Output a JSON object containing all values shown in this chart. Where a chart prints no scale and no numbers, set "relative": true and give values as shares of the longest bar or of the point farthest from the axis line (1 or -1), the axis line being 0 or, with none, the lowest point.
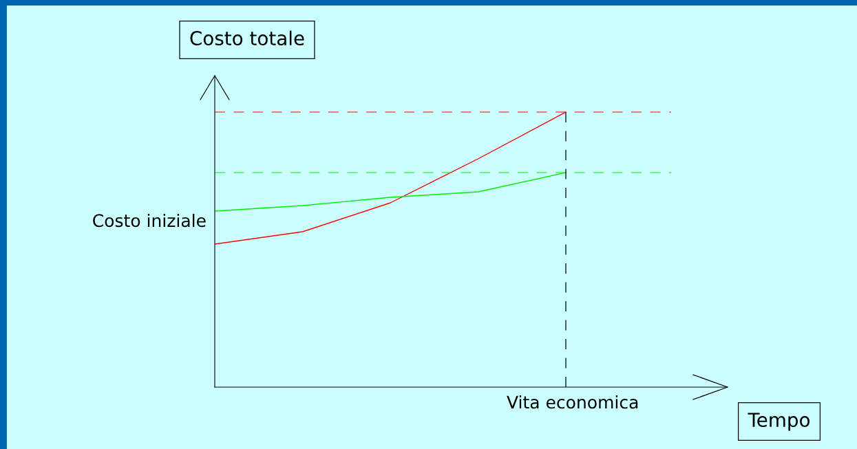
{
  "chart_data": {
    "type": "line",
    "relative": true,
    "ylabel": "Costo totale",
    "xlabel": "Tempo",
    "categories": [
      null,
      null,
      null,
      null,
      null
    ],
    "series": [
      {
        "color": "#ff0000",
        "values": [
          0.52,
          0.565,
          0.67,
          0.83,
          1
        ]
      },
      {
        "color": "#00ee00",
        "values": [
          0.64,
          0.66,
          0.69,
          0.71,
          0.78
        ]
      }
    ],
    "ref_lines": [
      {
        "axis": "y",
        "value": 1,
        "color": "#ff0000",
        "line_style": "dashed"
      },
      {
        "axis": "y",
        "value": 0.78,
        "color": "#00ee00",
        "line_style": "dashed"
      }
    ],
    "annotations": [
      "Costo iniziale",
      "Vita economica"
    ],
    "grid": false,
    "marker": "none",
    "line_style": "solid"
  }
}
